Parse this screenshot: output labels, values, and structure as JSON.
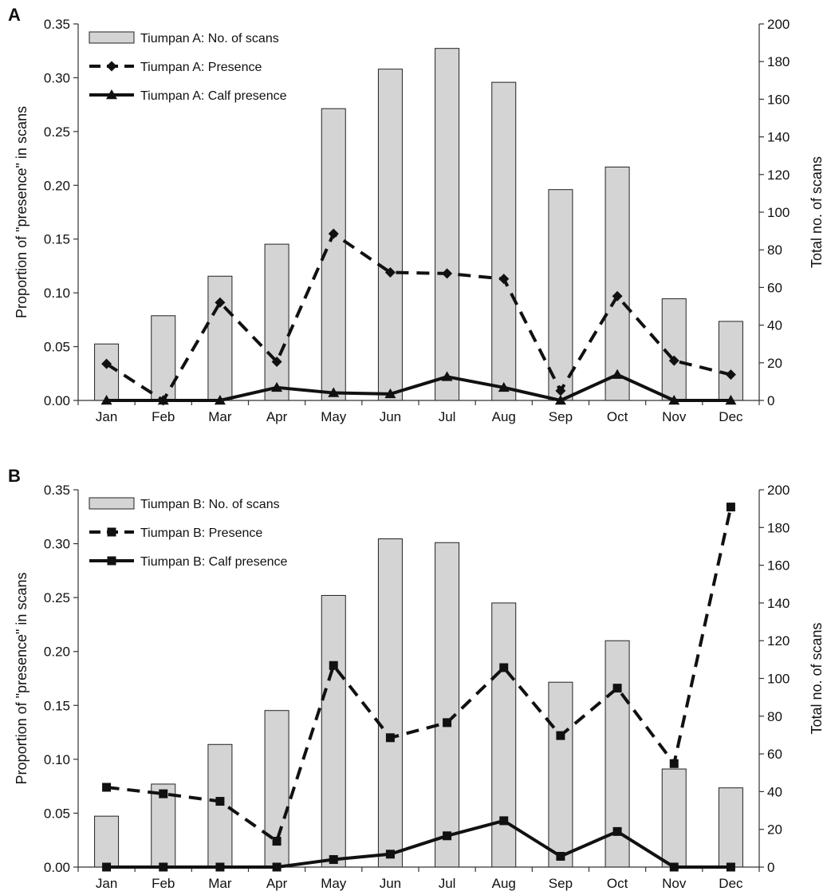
{
  "chart_data": [
    {
      "type": "bar+line",
      "panel_label": "A",
      "categories": [
        "Jan",
        "Feb",
        "Mar",
        "Apr",
        "May",
        "Jun",
        "Jul",
        "Aug",
        "Sep",
        "Oct",
        "Nov",
        "Dec"
      ],
      "ylabel_left": "Proportion of \"presence\" in scans",
      "ylabel_right": "Total no. of scans",
      "ylim_left": [
        0,
        0.35
      ],
      "yticks_left": [
        "0.00",
        "0.05",
        "0.10",
        "0.15",
        "0.20",
        "0.25",
        "0.30",
        "0.35"
      ],
      "ylim_right": [
        0,
        200
      ],
      "yticks_right": [
        "0",
        "20",
        "40",
        "60",
        "80",
        "100",
        "120",
        "140",
        "160",
        "180",
        "200"
      ],
      "grid": false,
      "legend_position": "top-left",
      "bars": {
        "name": "Tiumpan A: No. of scans",
        "axis": "right",
        "color": "#d4d4d4",
        "values": [
          30,
          45,
          66,
          83,
          155,
          176,
          187,
          169,
          112,
          124,
          54,
          42
        ]
      },
      "series": [
        {
          "name": "Tiumpan A: Presence",
          "axis": "left",
          "style": "dashed",
          "marker": "diamond",
          "values": [
            0.034,
            0.0,
            0.091,
            0.036,
            0.155,
            0.119,
            0.118,
            0.113,
            0.009,
            0.097,
            0.037,
            0.024
          ]
        },
        {
          "name": "Tiumpan A: Calf presence",
          "axis": "left",
          "style": "solid",
          "marker": "triangle",
          "values": [
            0.0,
            0.0,
            0.0,
            0.012,
            0.007,
            0.006,
            0.022,
            0.012,
            0.0,
            0.024,
            0.0,
            0.0
          ]
        }
      ]
    },
    {
      "type": "bar+line",
      "panel_label": "B",
      "categories": [
        "Jan",
        "Feb",
        "Mar",
        "Apr",
        "May",
        "Jun",
        "Jul",
        "Aug",
        "Sep",
        "Oct",
        "Nov",
        "Dec"
      ],
      "ylabel_left": "Proportion of \"presence\" in scans",
      "ylabel_right": "Total no. of scans",
      "ylim_left": [
        0,
        0.35
      ],
      "yticks_left": [
        "0.00",
        "0.05",
        "0.10",
        "0.15",
        "0.20",
        "0.25",
        "0.30",
        "0.35"
      ],
      "ylim_right": [
        0,
        200
      ],
      "yticks_right": [
        "0",
        "20",
        "40",
        "60",
        "80",
        "100",
        "120",
        "140",
        "160",
        "180",
        "200"
      ],
      "grid": false,
      "legend_position": "top-left",
      "bars": {
        "name": "Tiumpan B: No. of scans",
        "axis": "right",
        "color": "#d4d4d4",
        "values": [
          27,
          44,
          65,
          83,
          144,
          174,
          172,
          140,
          98,
          120,
          52,
          42
        ]
      },
      "series": [
        {
          "name": "Tiumpan B: Presence",
          "axis": "left",
          "style": "dashed",
          "marker": "square",
          "values": [
            0.074,
            0.068,
            0.061,
            0.024,
            0.187,
            0.12,
            0.134,
            0.185,
            0.122,
            0.166,
            0.096,
            0.334
          ]
        },
        {
          "name": "Tiumpan B: Calf presence",
          "axis": "left",
          "style": "solid",
          "marker": "square",
          "values": [
            0.0,
            0.0,
            0.0,
            0.0,
            0.007,
            0.012,
            0.029,
            0.043,
            0.01,
            0.033,
            0.0,
            0.0
          ]
        }
      ]
    }
  ]
}
